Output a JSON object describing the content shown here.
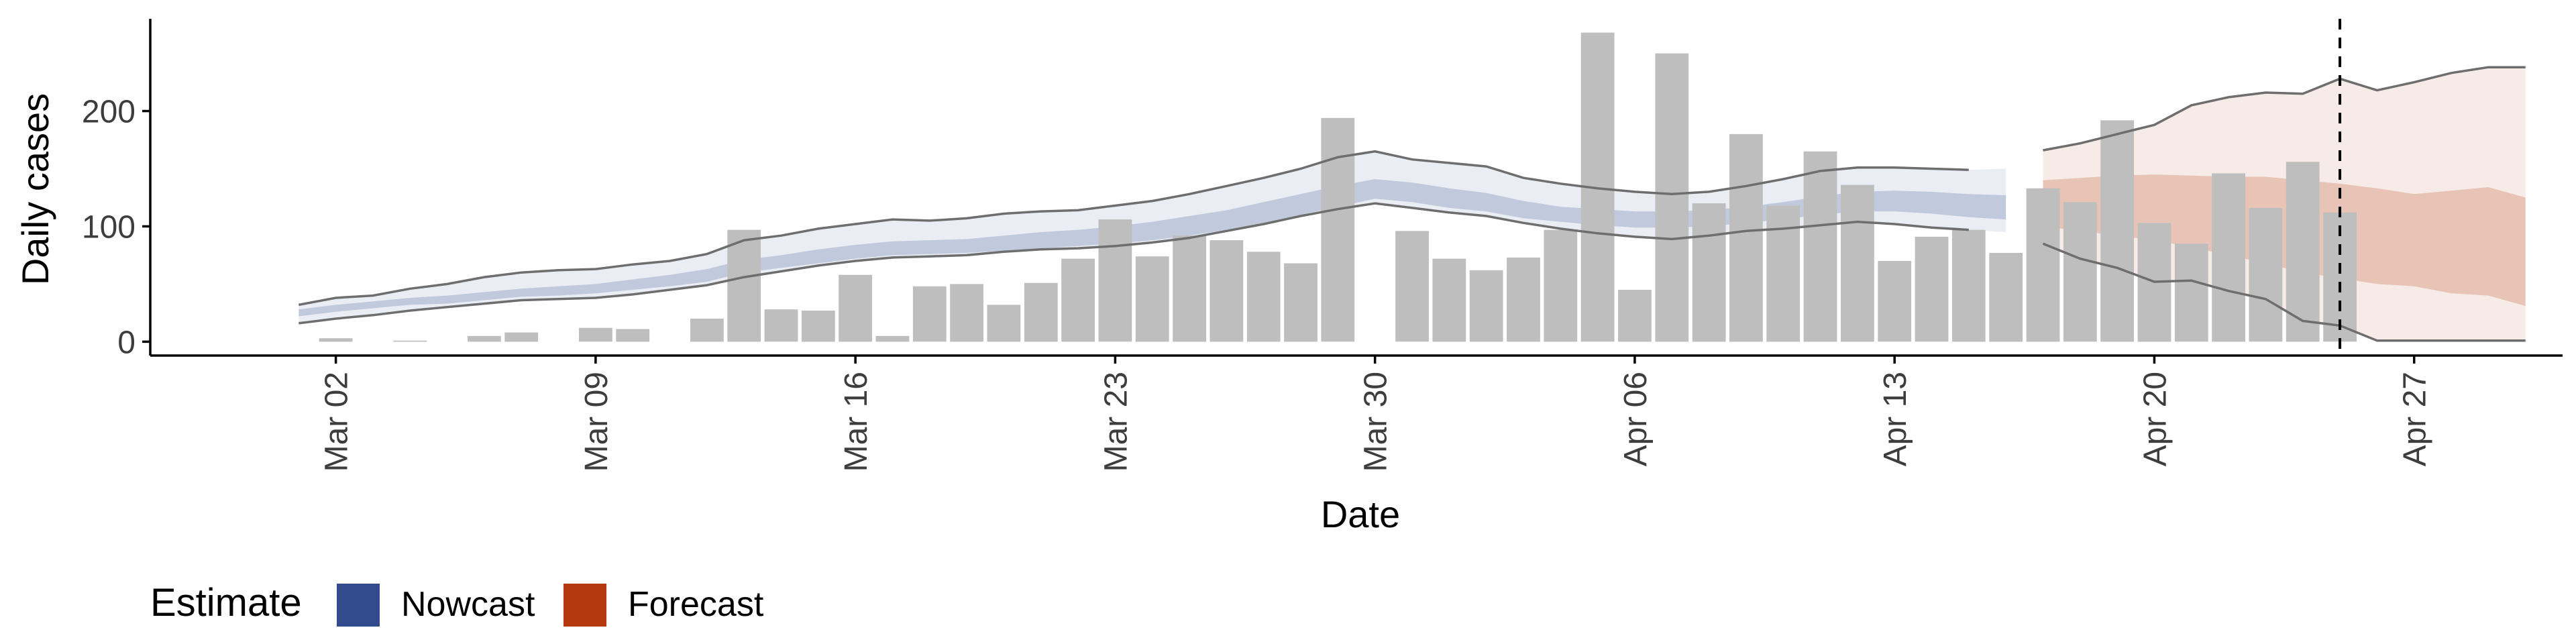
{
  "chart_data": {
    "type": "bar",
    "xlabel": "Date",
    "ylabel": "Daily cases",
    "ylim": [
      -12,
      280
    ],
    "yticks": [
      0,
      100,
      200
    ],
    "xticks": [
      {
        "date": "2020-03-02",
        "label": "Mar 02"
      },
      {
        "date": "2020-03-09",
        "label": "Mar 09"
      },
      {
        "date": "2020-03-16",
        "label": "Mar 16"
      },
      {
        "date": "2020-03-23",
        "label": "Mar 23"
      },
      {
        "date": "2020-03-30",
        "label": "Mar 30"
      },
      {
        "date": "2020-04-06",
        "label": "Apr 06"
      },
      {
        "date": "2020-04-13",
        "label": "Apr 13"
      },
      {
        "date": "2020-04-20",
        "label": "Apr 20"
      },
      {
        "date": "2020-04-27",
        "label": "Apr 27"
      }
    ],
    "x_range": [
      "2020-02-26",
      "2020-05-01"
    ],
    "reference_line_date": "2020-04-25",
    "colors": {
      "bars": "#bebebe",
      "nowcast": "#324b8d",
      "forecast": "#b5390f",
      "ci_line": "#6e6e6e",
      "axis": "#000000"
    },
    "bars": {
      "name": "Daily cases",
      "dates": [
        "2020-03-02",
        "2020-03-04",
        "2020-03-06",
        "2020-03-07",
        "2020-03-09",
        "2020-03-10",
        "2020-03-12",
        "2020-03-13",
        "2020-03-14",
        "2020-03-15",
        "2020-03-16",
        "2020-03-17",
        "2020-03-18",
        "2020-03-19",
        "2020-03-20",
        "2020-03-21",
        "2020-03-22",
        "2020-03-23",
        "2020-03-24",
        "2020-03-25",
        "2020-03-26",
        "2020-03-27",
        "2020-03-28",
        "2020-03-29",
        "2020-03-31",
        "2020-04-01",
        "2020-04-02",
        "2020-04-03",
        "2020-04-04",
        "2020-04-05",
        "2020-04-06",
        "2020-04-07",
        "2020-04-08",
        "2020-04-09",
        "2020-04-10",
        "2020-04-11",
        "2020-04-12",
        "2020-04-13",
        "2020-04-14",
        "2020-04-15",
        "2020-04-16",
        "2020-04-17",
        "2020-04-18",
        "2020-04-19",
        "2020-04-20",
        "2020-04-21",
        "2020-04-22",
        "2020-04-23",
        "2020-04-24",
        "2020-04-25"
      ],
      "values": [
        3,
        1,
        5,
        8,
        12,
        11,
        20,
        97,
        28,
        27,
        58,
        5,
        48,
        50,
        32,
        51,
        72,
        106,
        74,
        92,
        88,
        78,
        68,
        194,
        96,
        72,
        62,
        73,
        97,
        268,
        45,
        250,
        120,
        180,
        118,
        165,
        136,
        70,
        91,
        97,
        77,
        133,
        121,
        192,
        103,
        85,
        146,
        116,
        156,
        112
      ]
    },
    "series": [
      {
        "name": "Nowcast",
        "dates": [
          "2020-03-01",
          "2020-03-02",
          "2020-03-03",
          "2020-03-04",
          "2020-03-05",
          "2020-03-06",
          "2020-03-07",
          "2020-03-08",
          "2020-03-09",
          "2020-03-10",
          "2020-03-11",
          "2020-03-12",
          "2020-03-13",
          "2020-03-14",
          "2020-03-15",
          "2020-03-16",
          "2020-03-17",
          "2020-03-18",
          "2020-03-19",
          "2020-03-20",
          "2020-03-21",
          "2020-03-22",
          "2020-03-23",
          "2020-03-24",
          "2020-03-25",
          "2020-03-26",
          "2020-03-27",
          "2020-03-28",
          "2020-03-29",
          "2020-03-30",
          "2020-03-31",
          "2020-04-01",
          "2020-04-02",
          "2020-04-03",
          "2020-04-04",
          "2020-04-05",
          "2020-04-06",
          "2020-04-07",
          "2020-04-08",
          "2020-04-09",
          "2020-04-10",
          "2020-04-11",
          "2020-04-12",
          "2020-04-13",
          "2020-04-14",
          "2020-04-15",
          "2020-04-16"
        ],
        "upper90": [
          32,
          38,
          40,
          46,
          50,
          56,
          60,
          62,
          63,
          67,
          70,
          76,
          88,
          92,
          98,
          102,
          106,
          105,
          107,
          111,
          113,
          114,
          118,
          122,
          128,
          135,
          142,
          150,
          160,
          165,
          158,
          155,
          152,
          142,
          137,
          133,
          130,
          128,
          130,
          135,
          141,
          148,
          151,
          151,
          150,
          149,
          150
        ],
        "upper50": [
          28,
          32,
          35,
          38,
          40,
          43,
          46,
          48,
          50,
          54,
          58,
          63,
          71,
          75,
          80,
          84,
          87,
          88,
          89,
          92,
          95,
          97,
          100,
          104,
          109,
          114,
          121,
          128,
          135,
          141,
          138,
          133,
          129,
          122,
          117,
          115,
          113,
          113,
          114,
          117,
          121,
          126,
          130,
          131,
          130,
          128,
          127
        ],
        "lower50": [
          22,
          26,
          29,
          32,
          33,
          36,
          39,
          40,
          42,
          45,
          48,
          52,
          60,
          64,
          68,
          72,
          75,
          76,
          77,
          79,
          81,
          83,
          85,
          88,
          92,
          97,
          103,
          110,
          117,
          124,
          121,
          116,
          113,
          107,
          104,
          101,
          99,
          99,
          100,
          103,
          106,
          110,
          113,
          113,
          111,
          108,
          106
        ],
        "lower90": [
          16,
          20,
          23,
          27,
          30,
          33,
          36,
          37,
          38,
          41,
          45,
          49,
          56,
          61,
          66,
          70,
          73,
          74,
          75,
          78,
          80,
          81,
          83,
          86,
          90,
          96,
          102,
          109,
          115,
          120,
          116,
          112,
          109,
          103,
          98,
          94,
          91,
          89,
          92,
          96,
          98,
          101,
          104,
          102,
          99,
          97,
          95
        ]
      },
      {
        "name": "Forecast",
        "dates": [
          "2020-04-17",
          "2020-04-18",
          "2020-04-19",
          "2020-04-20",
          "2020-04-21",
          "2020-04-22",
          "2020-04-23",
          "2020-04-24",
          "2020-04-25",
          "2020-04-26",
          "2020-04-27",
          "2020-04-28",
          "2020-04-29",
          "2020-04-30"
        ],
        "upper90": [
          166,
          172,
          180,
          188,
          205,
          212,
          216,
          215,
          228,
          218,
          225,
          233,
          238,
          238
        ],
        "upper50": [
          140,
          142,
          144,
          145,
          144,
          143,
          143,
          140,
          137,
          133,
          128,
          131,
          134,
          125
        ],
        "lower50": [
          100,
          96,
          92,
          88,
          82,
          75,
          68,
          60,
          55,
          50,
          48,
          42,
          40,
          31
        ],
        "lower90": [
          85,
          72,
          64,
          52,
          53,
          44,
          37,
          18,
          14,
          1,
          1,
          1,
          1,
          1
        ]
      }
    ],
    "legend": {
      "title": "Estimate",
      "placement": "bottom",
      "items": [
        {
          "label": "Nowcast",
          "color": "#324b8d"
        },
        {
          "label": "Forecast",
          "color": "#b5390f"
        }
      ]
    }
  }
}
